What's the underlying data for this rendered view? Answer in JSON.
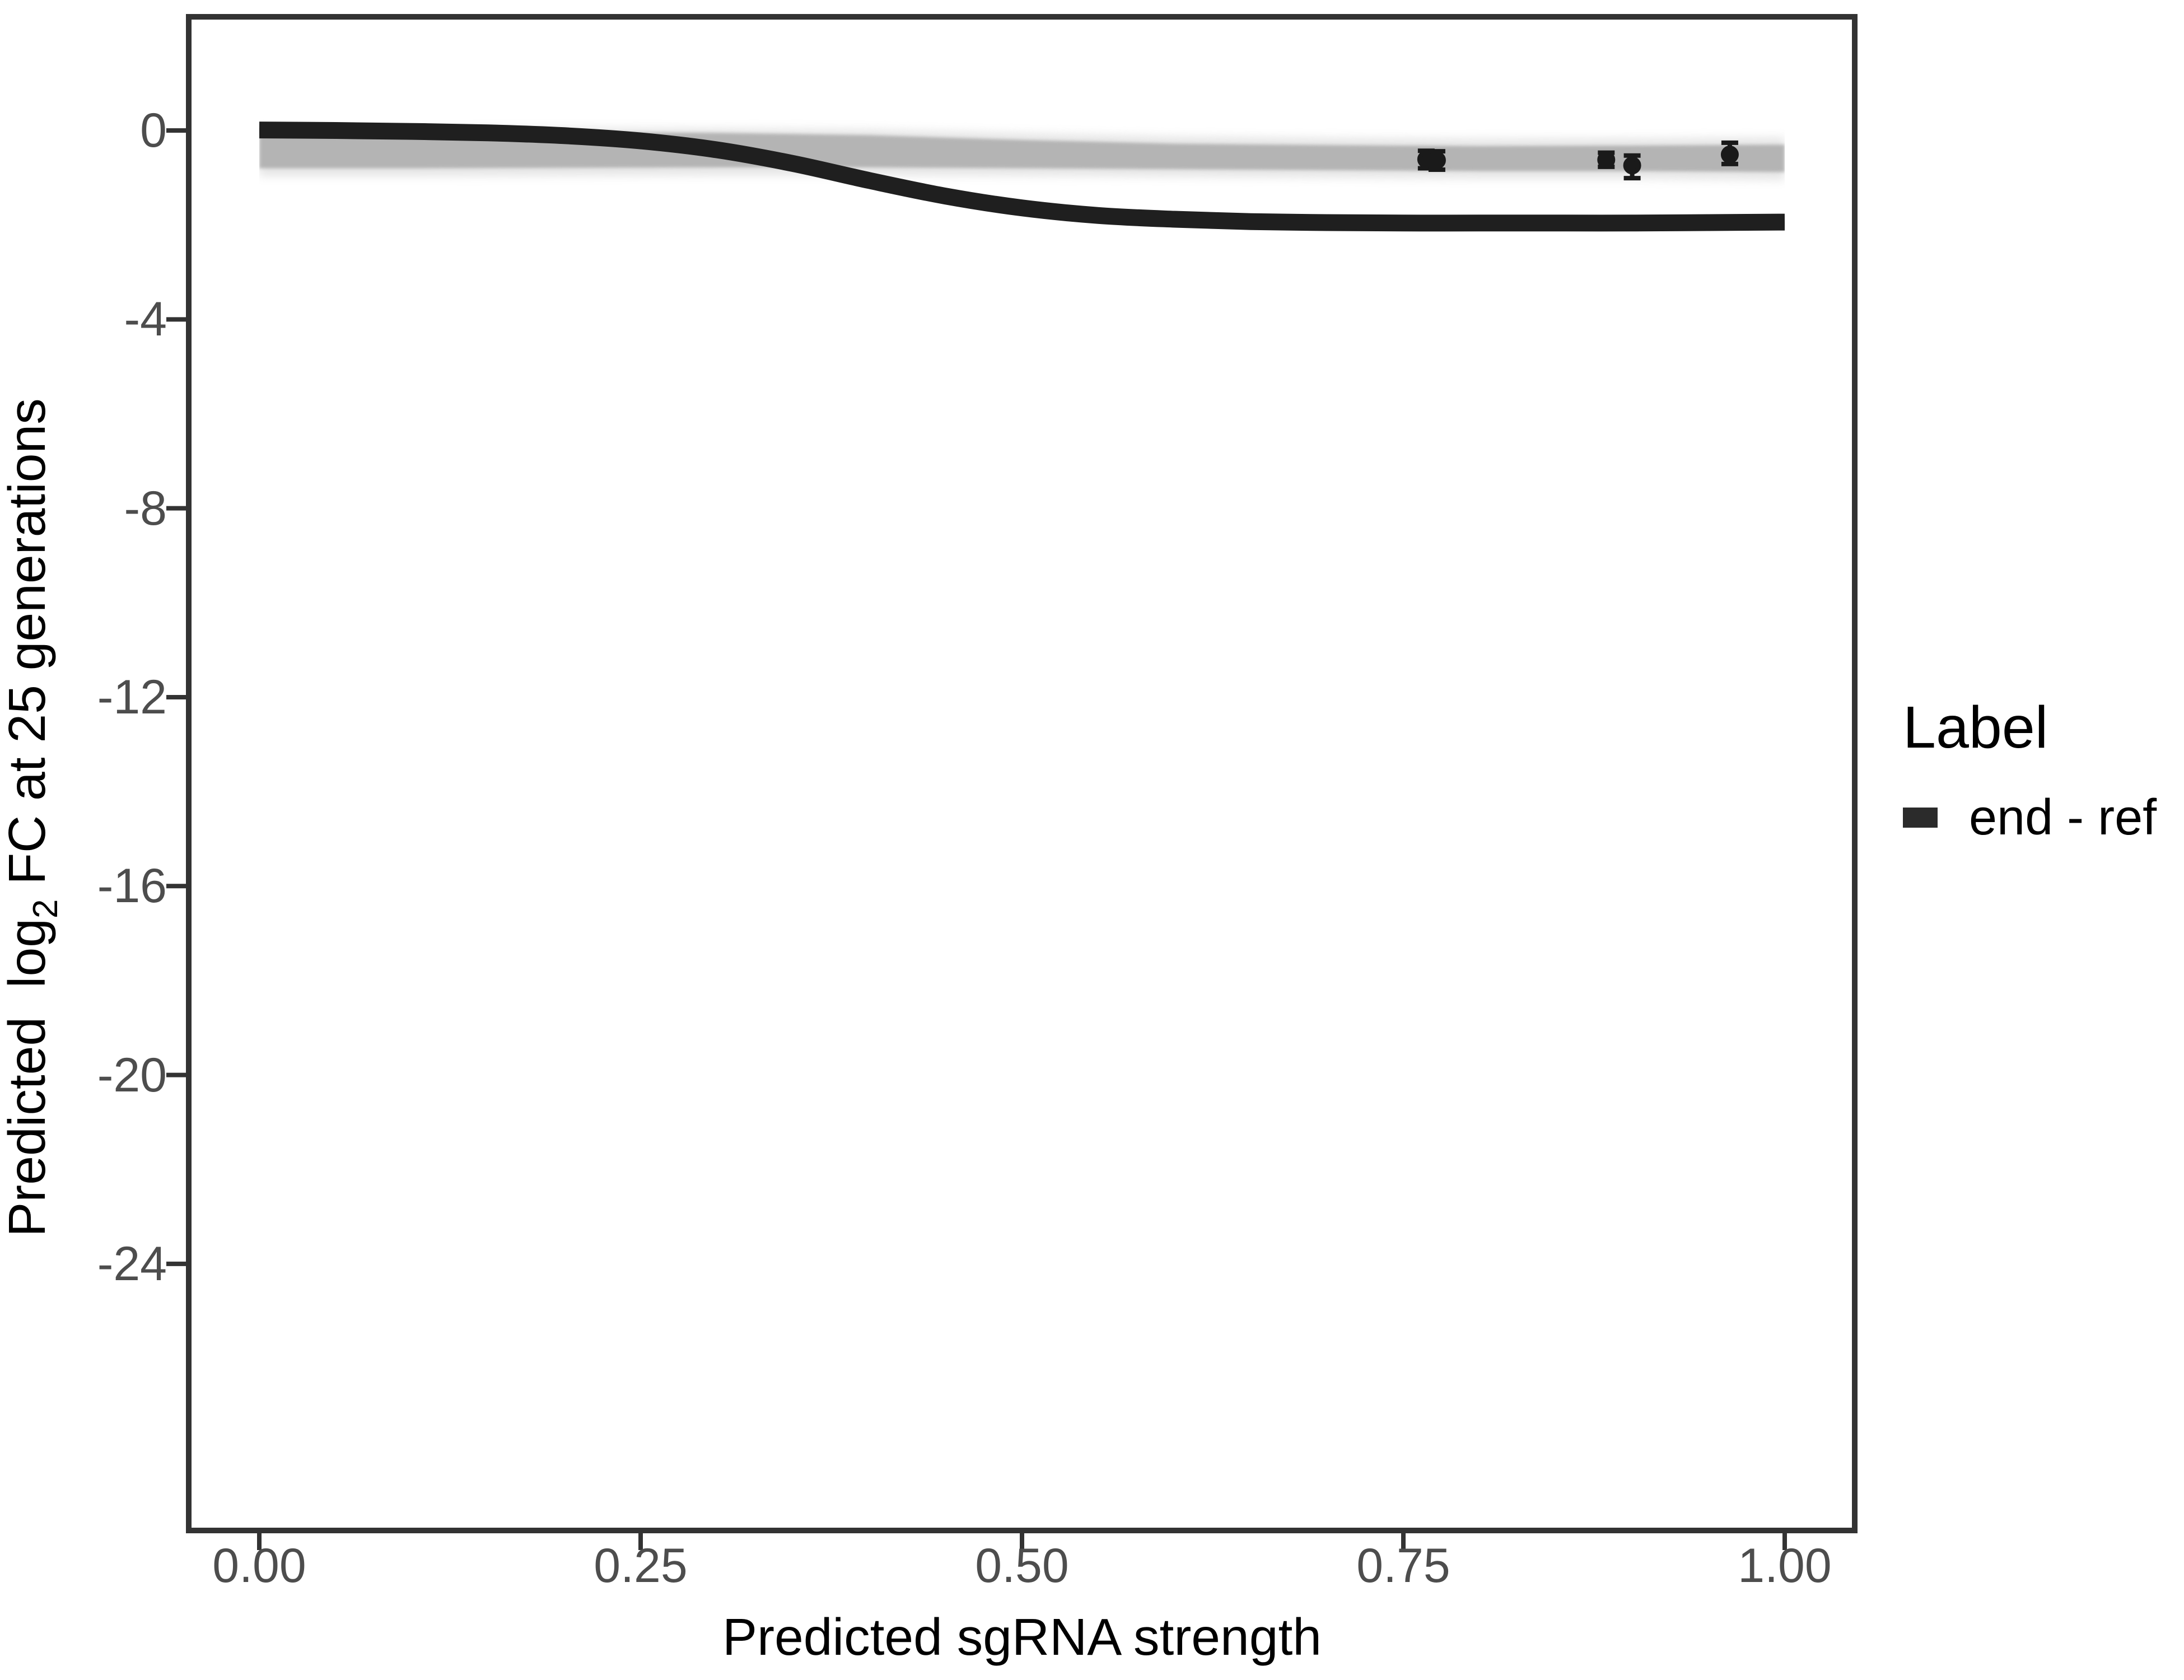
{
  "figure": {
    "background": "#ffffff",
    "colors": {
      "axis_text": "#4d4d4d",
      "axis_title": "#000000",
      "panel_border": "#333333",
      "tick": "#333333",
      "curve": "#1f1f1f",
      "ribbon_core": "#a8a8a8",
      "ribbon_halo": "#c6c6c6",
      "point": "#1a1a1a",
      "legend_key": "#2b2b2b"
    }
  },
  "chart_data": {
    "type": "line",
    "title": "",
    "xlabel": "Predicted sgRNA strength",
    "ylabel": {
      "prefix": "Predicted  log",
      "sub": "2",
      "suffix": " FC at 25 generations"
    },
    "xlim": [
      -0.048,
      1.048
    ],
    "ylim": [
      -29.7,
      2.47
    ],
    "grid": "off",
    "x_ticks": [
      {
        "v": 0.0,
        "label": "0.00"
      },
      {
        "v": 0.25,
        "label": "0.25"
      },
      {
        "v": 0.5,
        "label": "0.50"
      },
      {
        "v": 0.75,
        "label": "0.75"
      },
      {
        "v": 1.0,
        "label": "1.00"
      }
    ],
    "y_ticks": [
      {
        "v": 0,
        "label": "0"
      },
      {
        "v": -4,
        "label": "-4"
      },
      {
        "v": -8,
        "label": "-8"
      },
      {
        "v": -12,
        "label": "-12"
      },
      {
        "v": -16,
        "label": "-16"
      },
      {
        "v": -20,
        "label": "-20"
      },
      {
        "v": -24,
        "label": "-24"
      }
    ],
    "series": [
      {
        "name": "end - ref",
        "style": "thick-smooth-line",
        "x": [
          0,
          0.05,
          0.1,
          0.15,
          0.2,
          0.25,
          0.3,
          0.35,
          0.4,
          0.45,
          0.5,
          0.55,
          0.6,
          0.65,
          0.7,
          0.75,
          0.8,
          0.85,
          0.9,
          0.95,
          1.0
        ],
        "y": [
          0.01,
          0.0,
          -0.02,
          -0.05,
          -0.11,
          -0.22,
          -0.41,
          -0.7,
          -1.06,
          -1.39,
          -1.64,
          -1.8,
          -1.88,
          -1.93,
          -1.95,
          -1.96,
          -1.96,
          -1.96,
          -1.96,
          -1.95,
          -1.94
        ]
      }
    ],
    "ribbon": {
      "description": "gray band of reference model draws near 0",
      "x": [
        0,
        0.1,
        0.2,
        0.3,
        0.4,
        0.5,
        0.6,
        0.7,
        0.8,
        0.9,
        1.0
      ],
      "upper": [
        -0.05,
        -0.05,
        -0.04,
        -0.05,
        -0.1,
        -0.2,
        -0.28,
        -0.31,
        -0.33,
        -0.32,
        -0.3
      ],
      "lower": [
        -0.8,
        -0.8,
        -0.79,
        -0.78,
        -0.78,
        -0.8,
        -0.82,
        -0.84,
        -0.86,
        -0.86,
        -0.88
      ],
      "halo_upper": [
        0.04,
        0.04,
        0.05,
        0.04,
        0.02,
        -0.06,
        -0.13,
        -0.16,
        -0.18,
        -0.17,
        -0.15
      ],
      "halo_lower": [
        -0.97,
        -0.97,
        -0.96,
        -0.95,
        -0.95,
        -0.96,
        -0.98,
        -1.0,
        -1.02,
        -1.02,
        -1.05
      ]
    },
    "points": [
      {
        "x": 0.765,
        "y": -0.61,
        "ymin": -0.8,
        "ymax": -0.43
      },
      {
        "x": 0.772,
        "y": -0.63,
        "ymin": -0.83,
        "ymax": -0.44
      },
      {
        "x": 0.883,
        "y": -0.62,
        "ymin": -0.77,
        "ymax": -0.47
      },
      {
        "x": 0.9,
        "y": -0.74,
        "ymin": -1.01,
        "ymax": -0.53
      },
      {
        "x": 0.964,
        "y": -0.51,
        "ymin": -0.71,
        "ymax": -0.26
      }
    ],
    "legend": {
      "title": "Label",
      "position": "right",
      "items": [
        {
          "label": "end - ref",
          "key": "thick-line"
        }
      ]
    }
  }
}
